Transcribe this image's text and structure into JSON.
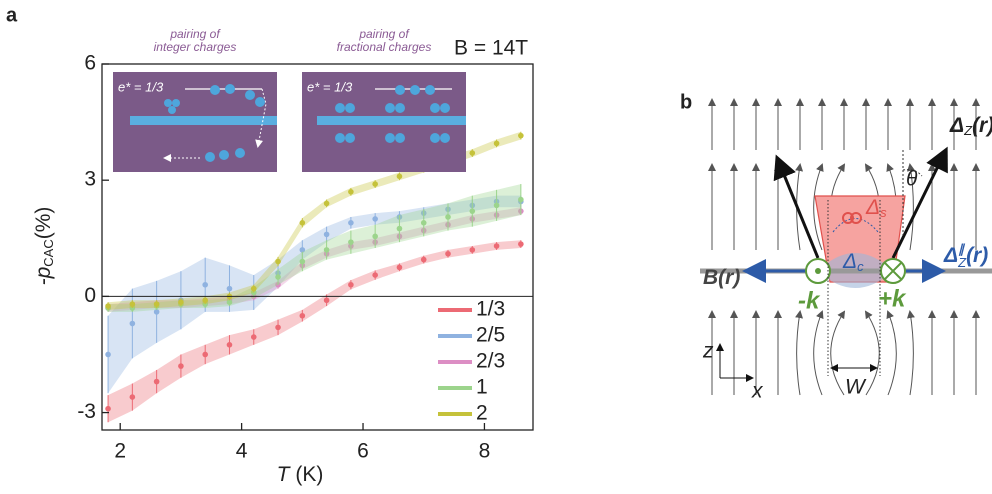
{
  "panel_labels": [
    "a",
    "b"
  ],
  "chart_data": {
    "type": "scatter",
    "xlabel": {
      "var": "T",
      "unit": "(K)"
    },
    "ylabel": {
      "main": "-p",
      "sub": "CAC",
      "unit": "(%)"
    },
    "annotation": "B = 14T",
    "insets": [
      {
        "caption": [
          "pairing of",
          "integer charges"
        ],
        "label": "e* = 1/3"
      },
      {
        "caption": [
          "pairing of",
          "fractional charges"
        ],
        "label": "e* = 1/3"
      }
    ],
    "xlim": [
      1.7,
      8.8
    ],
    "xticks": [
      2,
      4,
      6,
      8
    ],
    "ylim": [
      -3.45,
      6
    ],
    "yticks": [
      -3,
      0,
      3,
      6
    ],
    "legend": "lower right",
    "x": [
      1.8,
      2.2,
      2.6,
      3.0,
      3.4,
      3.8,
      4.2,
      4.6,
      5.0,
      5.4,
      5.8,
      6.2,
      6.6,
      7.0,
      7.4,
      7.8,
      8.2,
      8.6
    ],
    "series": [
      {
        "name": "1/3",
        "color": "#ec6a74",
        "values": [
          -2.9,
          -2.6,
          -2.2,
          -1.8,
          -1.5,
          -1.25,
          -1.05,
          -0.8,
          -0.5,
          -0.1,
          0.3,
          0.55,
          0.75,
          0.95,
          1.1,
          1.2,
          1.3,
          1.35
        ],
        "errors": [
          0.35,
          0.35,
          0.3,
          0.3,
          0.25,
          0.25,
          0.2,
          0.2,
          0.15,
          0.15,
          0.12,
          0.12,
          0.1,
          0.1,
          0.1,
          0.1,
          0.1,
          0.1
        ]
      },
      {
        "name": "2/5",
        "color": "#8fb2e0",
        "values": [
          -1.5,
          -0.7,
          -0.4,
          -0.1,
          0.3,
          0.2,
          0.1,
          0.6,
          1.2,
          1.6,
          1.9,
          2.0,
          2.05,
          2.15,
          2.25,
          2.35,
          2.45,
          2.45
        ],
        "errors": [
          1.0,
          0.9,
          0.8,
          0.75,
          0.7,
          0.6,
          0.45,
          0.35,
          0.25,
          0.2,
          0.15,
          0.15,
          0.15,
          0.15,
          0.15,
          0.15,
          0.15,
          0.15
        ]
      },
      {
        "name": "2/3",
        "color": "#dc8ec4",
        "values": [
          -0.3,
          -0.25,
          -0.2,
          -0.2,
          -0.15,
          -0.1,
          0.0,
          0.3,
          0.8,
          1.1,
          1.3,
          1.4,
          1.55,
          1.7,
          1.85,
          2.0,
          2.1,
          2.2
        ],
        "errors": [
          0.1,
          0.1,
          0.1,
          0.1,
          0.1,
          0.1,
          0.1,
          0.1,
          0.1,
          0.1,
          0.1,
          0.1,
          0.1,
          0.1,
          0.1,
          0.1,
          0.1,
          0.1
        ]
      },
      {
        "name": "1",
        "color": "#9cd48c",
        "values": [
          -0.3,
          -0.3,
          -0.25,
          -0.2,
          -0.2,
          -0.15,
          0.1,
          0.5,
          0.9,
          1.2,
          1.4,
          1.55,
          1.75,
          1.9,
          2.05,
          2.2,
          2.35,
          2.5
        ],
        "errors": [
          0.1,
          0.1,
          0.1,
          0.1,
          0.1,
          0.1,
          0.15,
          0.2,
          0.25,
          0.25,
          0.3,
          0.3,
          0.35,
          0.35,
          0.35,
          0.4,
          0.4,
          0.4
        ]
      },
      {
        "name": "2",
        "color": "#c5c23a",
        "values": [
          -0.25,
          -0.2,
          -0.2,
          -0.15,
          -0.1,
          0.0,
          0.2,
          0.9,
          1.9,
          2.4,
          2.7,
          2.9,
          3.1,
          3.3,
          3.5,
          3.7,
          3.95,
          4.15
        ],
        "errors": [
          0.1,
          0.1,
          0.1,
          0.1,
          0.1,
          0.1,
          0.1,
          0.12,
          0.12,
          0.1,
          0.1,
          0.1,
          0.1,
          0.1,
          0.1,
          0.1,
          0.1,
          0.1
        ]
      }
    ]
  },
  "diagram": {
    "delta_z": {
      "main": "Δ",
      "sub": "Z",
      "arg": "(r)"
    },
    "theta": "θ",
    "delta_s": {
      "main": "Δ",
      "sub": "s"
    },
    "b_field": {
      "main": "B",
      "arg": "(r)"
    },
    "delta_z_par": {
      "main": "Δ",
      "sup": "∥",
      "sub": "Z",
      "arg": "(r)"
    },
    "delta_c": {
      "main": "Δ",
      "sub": "c"
    },
    "minus_k": "-k",
    "plus_k": "+k",
    "z_axis": "z",
    "x_axis": "x",
    "width": "W"
  }
}
